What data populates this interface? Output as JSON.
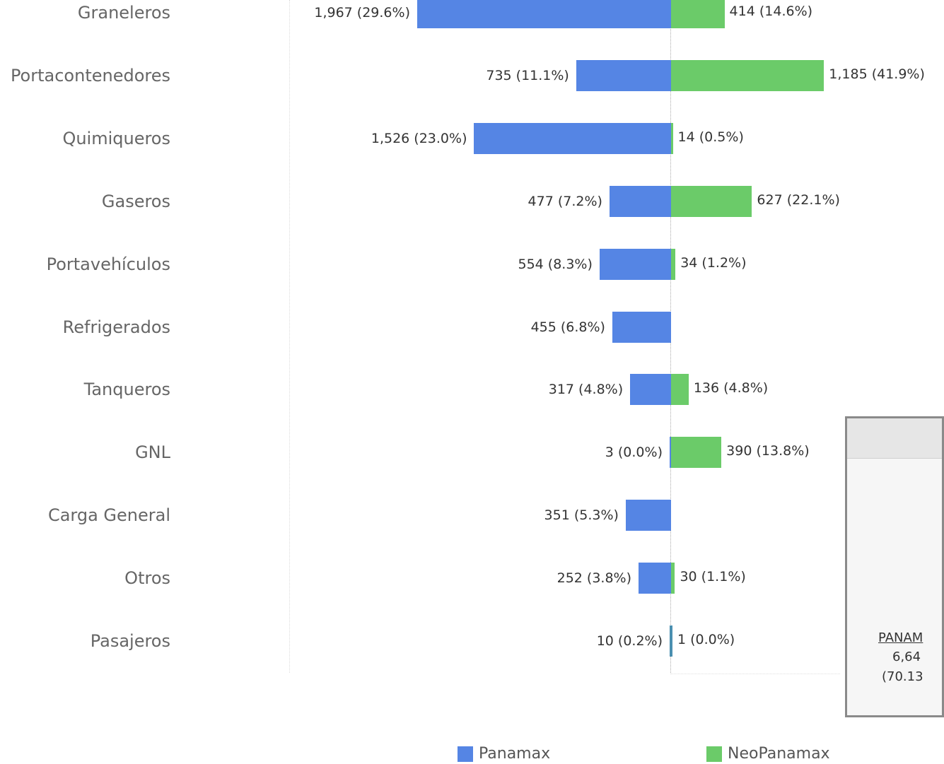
{
  "chart_data": {
    "type": "bar",
    "orientation": "horizontal-diverging",
    "categories": [
      "Graneleros",
      "Portacontenedores",
      "Quimiqueros",
      "Gaseros",
      "Portavehículos",
      "Refrigerados",
      "Tanqueros",
      "GNL",
      "Carga General",
      "Otros",
      "Pasajeros"
    ],
    "series": [
      {
        "name": "Panamax",
        "values": [
          1967,
          735,
          1526,
          477,
          554,
          455,
          317,
          3,
          351,
          252,
          10
        ],
        "labels": [
          "1,967  (29.6%)",
          "735  (11.1%)",
          "1,526  (23.0%)",
          "477  (7.2%)",
          "554  (8.3%)",
          "455  (6.8%)",
          "317  (4.8%)",
          "3  (0.0%)",
          "351  (5.3%)",
          "252  (3.8%)",
          "10  (0.2%)"
        ]
      },
      {
        "name": "NeoPanamax",
        "values": [
          414,
          1185,
          14,
          627,
          34,
          null,
          136,
          390,
          null,
          30,
          1
        ],
        "labels": [
          "414 (14.6%)",
          "1,185 (41.9%)",
          "14 (0.5%)",
          "627 (22.1%)",
          "34 (1.2%)",
          "",
          "136 (4.8%)",
          "390 (13.8%)",
          "",
          "30 (1.1%)",
          "1 (0.0%)"
        ]
      }
    ],
    "colors": {
      "Panamax": "#5585e4",
      "NeoPanamax": "#6bcb69",
      "Pasajeros_bar": "#4a8fb0"
    },
    "legend_position": "bottom",
    "grid": false
  },
  "legend": {
    "panamax": "Panamax",
    "neopanamax": "NeoPanamax"
  },
  "card": {
    "link_text": "PANAM",
    "value_text": "6,64",
    "pct_text": "(70.13"
  }
}
